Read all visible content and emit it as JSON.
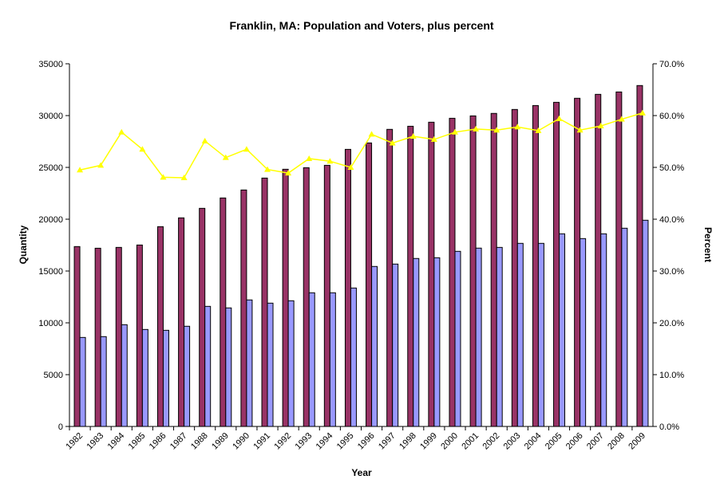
{
  "chart_data": {
    "type": "bar",
    "title": "Franklin, MA: Population and Voters, plus percent",
    "xlabel": "Year",
    "ylabel": "Quantity",
    "y2label": "Percent",
    "ylim": [
      0,
      35000
    ],
    "y2lim": [
      0,
      70
    ],
    "yticks": [
      "0",
      "5000",
      "10000",
      "15000",
      "20000",
      "25000",
      "30000",
      "35000"
    ],
    "y2ticks": [
      "0.0%",
      "10.0%",
      "20.0%",
      "30.0%",
      "40.0%",
      "50.0%",
      "60.0%",
      "70.0%"
    ],
    "grid": false,
    "legend": "none",
    "categories": [
      "1982",
      "1983",
      "1984",
      "1985",
      "1986",
      "1987",
      "1988",
      "1989",
      "1990",
      "1991",
      "1992",
      "1993",
      "1994",
      "1995",
      "1996",
      "1997",
      "1998",
      "1999",
      "2000",
      "2001",
      "2002",
      "2003",
      "2004",
      "2005",
      "2006",
      "2007",
      "2008",
      "2009"
    ],
    "series": [
      {
        "type": "bar",
        "axis": "left",
        "color": "#993366",
        "values": [
          17360,
          17200,
          17280,
          17510,
          19280,
          20130,
          21050,
          22050,
          22820,
          23970,
          24820,
          24970,
          25200,
          26740,
          27360,
          28670,
          28970,
          29360,
          29740,
          29970,
          30210,
          30590,
          30970,
          31280,
          31670,
          32050,
          32280,
          32900
        ]
      },
      {
        "type": "bar",
        "axis": "left",
        "color": "#9999FF",
        "values": [
          8590,
          8670,
          9820,
          9360,
          9280,
          9670,
          11590,
          11440,
          12210,
          11900,
          12130,
          12900,
          12900,
          13360,
          15440,
          15670,
          16210,
          16280,
          16900,
          17210,
          17280,
          17670,
          17670,
          18590,
          18130,
          18590,
          19130,
          19900
        ]
      },
      {
        "type": "line",
        "axis": "right",
        "color": "#FFFF00",
        "marker": "triangle",
        "values": [
          49.5,
          50.4,
          56.8,
          53.5,
          48.1,
          48.0,
          55.1,
          51.9,
          53.5,
          49.6,
          48.9,
          51.7,
          51.2,
          50.0,
          56.4,
          54.7,
          56.0,
          55.4,
          56.8,
          57.4,
          57.2,
          57.8,
          57.1,
          59.4,
          57.2,
          58.0,
          59.3,
          60.5
        ]
      }
    ]
  }
}
